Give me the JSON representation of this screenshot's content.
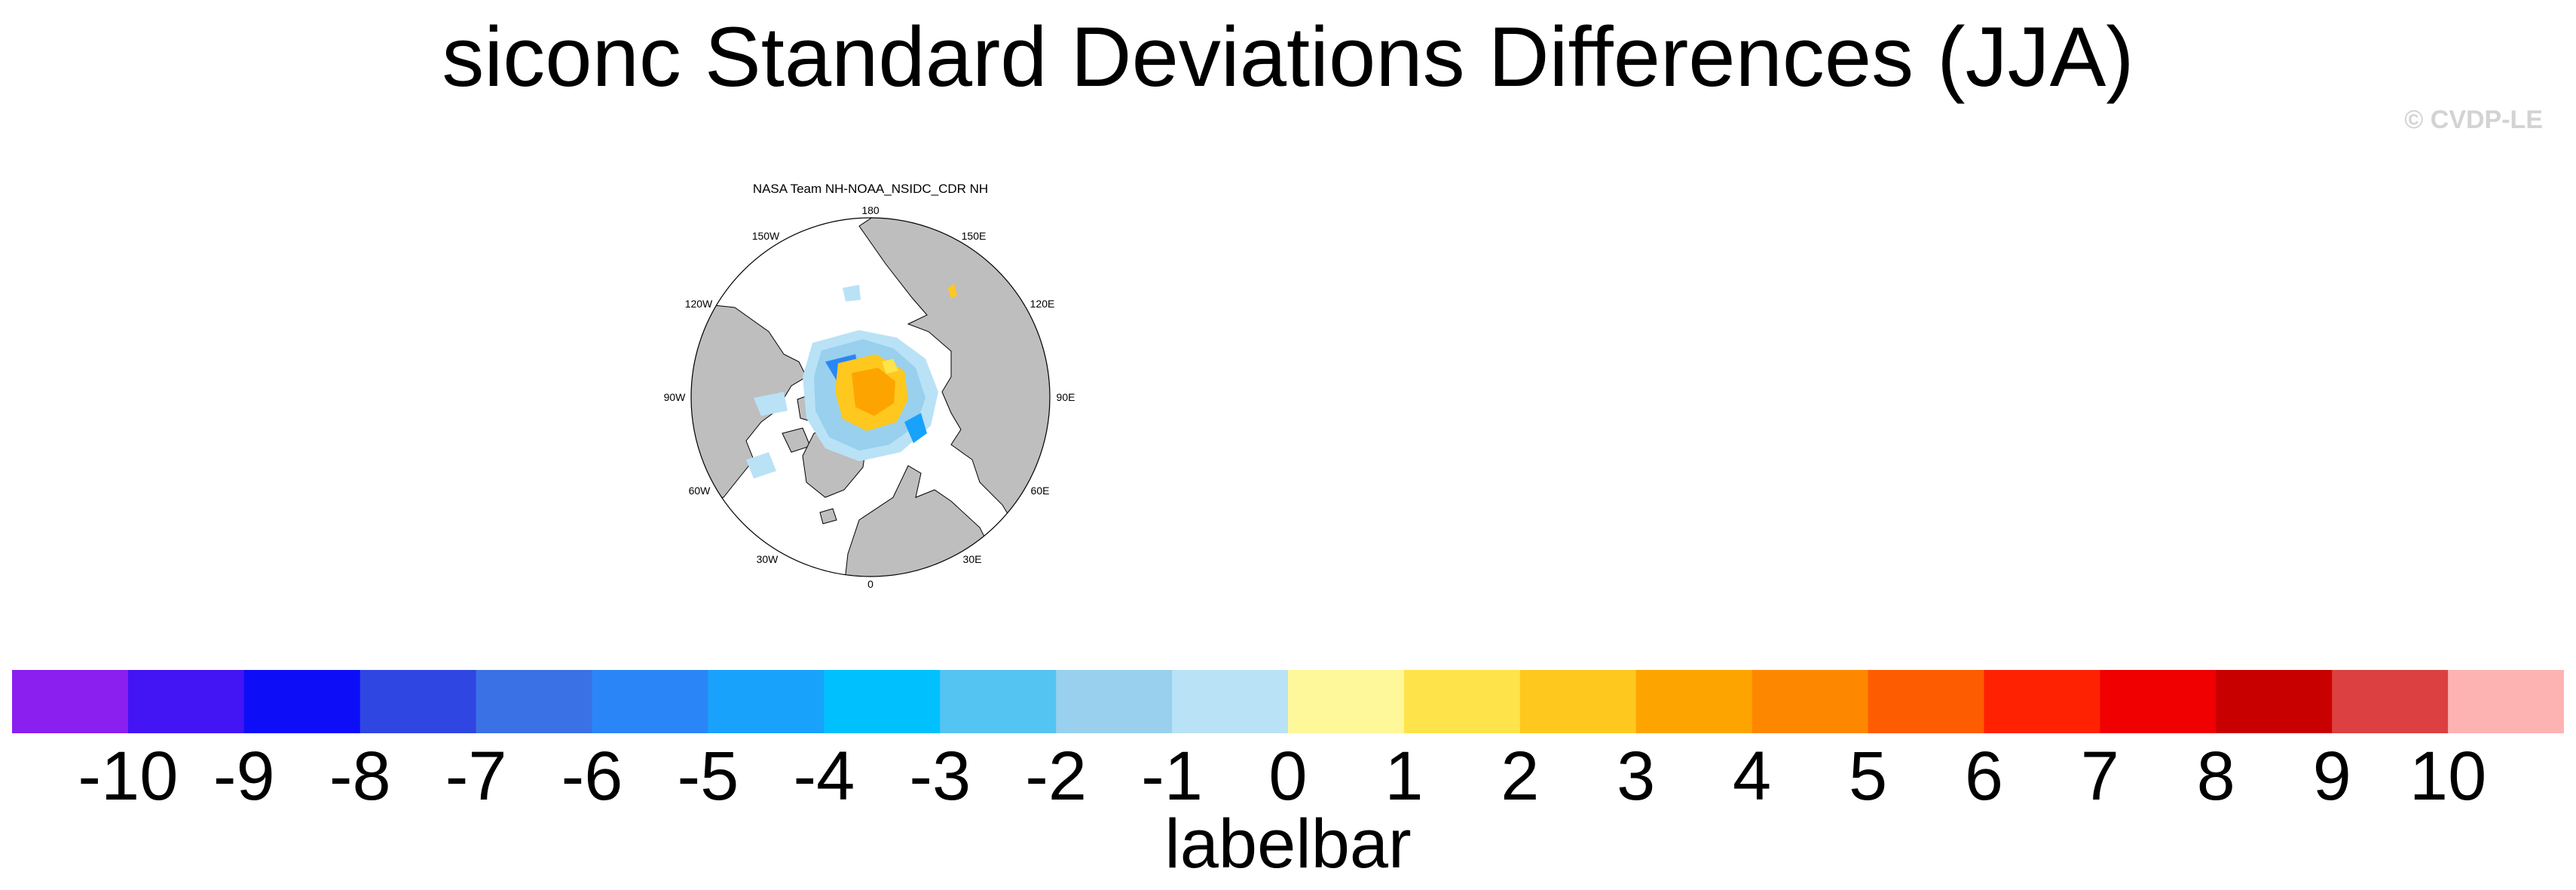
{
  "figure": {
    "title": "siconc Standard Deviations Differences (JJA)",
    "watermark": "© CVDP-LE"
  },
  "map": {
    "panel_title": "NASA Team NH-NOAA_NSIDC_CDR NH",
    "projection": "north polar stereographic",
    "land_color": "#bebebe",
    "longitude_labels": [
      "180",
      "150E",
      "120E",
      "90E",
      "60E",
      "30E",
      "0",
      "30W",
      "60W",
      "90W",
      "120W",
      "150W"
    ]
  },
  "labelbar": {
    "caption": "labelbar",
    "tick_labels": [
      "-10",
      "-9",
      "-8",
      "-7",
      "-6",
      "-5",
      "-4",
      "-3",
      "-2",
      "-1",
      "0",
      "1",
      "2",
      "3",
      "4",
      "5",
      "6",
      "7",
      "8",
      "9",
      "10"
    ],
    "colors": [
      "#8a1fef",
      "#4314f4",
      "#0d0df7",
      "#2f46e2",
      "#3a72e5",
      "#2a86f6",
      "#18a2fb",
      "#00c1fd",
      "#54c4f2",
      "#98d0ee",
      "#b9e2f6",
      "#fef89a",
      "#fee34a",
      "#fec81f",
      "#fea400",
      "#fe8700",
      "#fe5c00",
      "#fe2203",
      "#f00000",
      "#c80000",
      "#dc4040",
      "#feb3b3"
    ]
  }
}
